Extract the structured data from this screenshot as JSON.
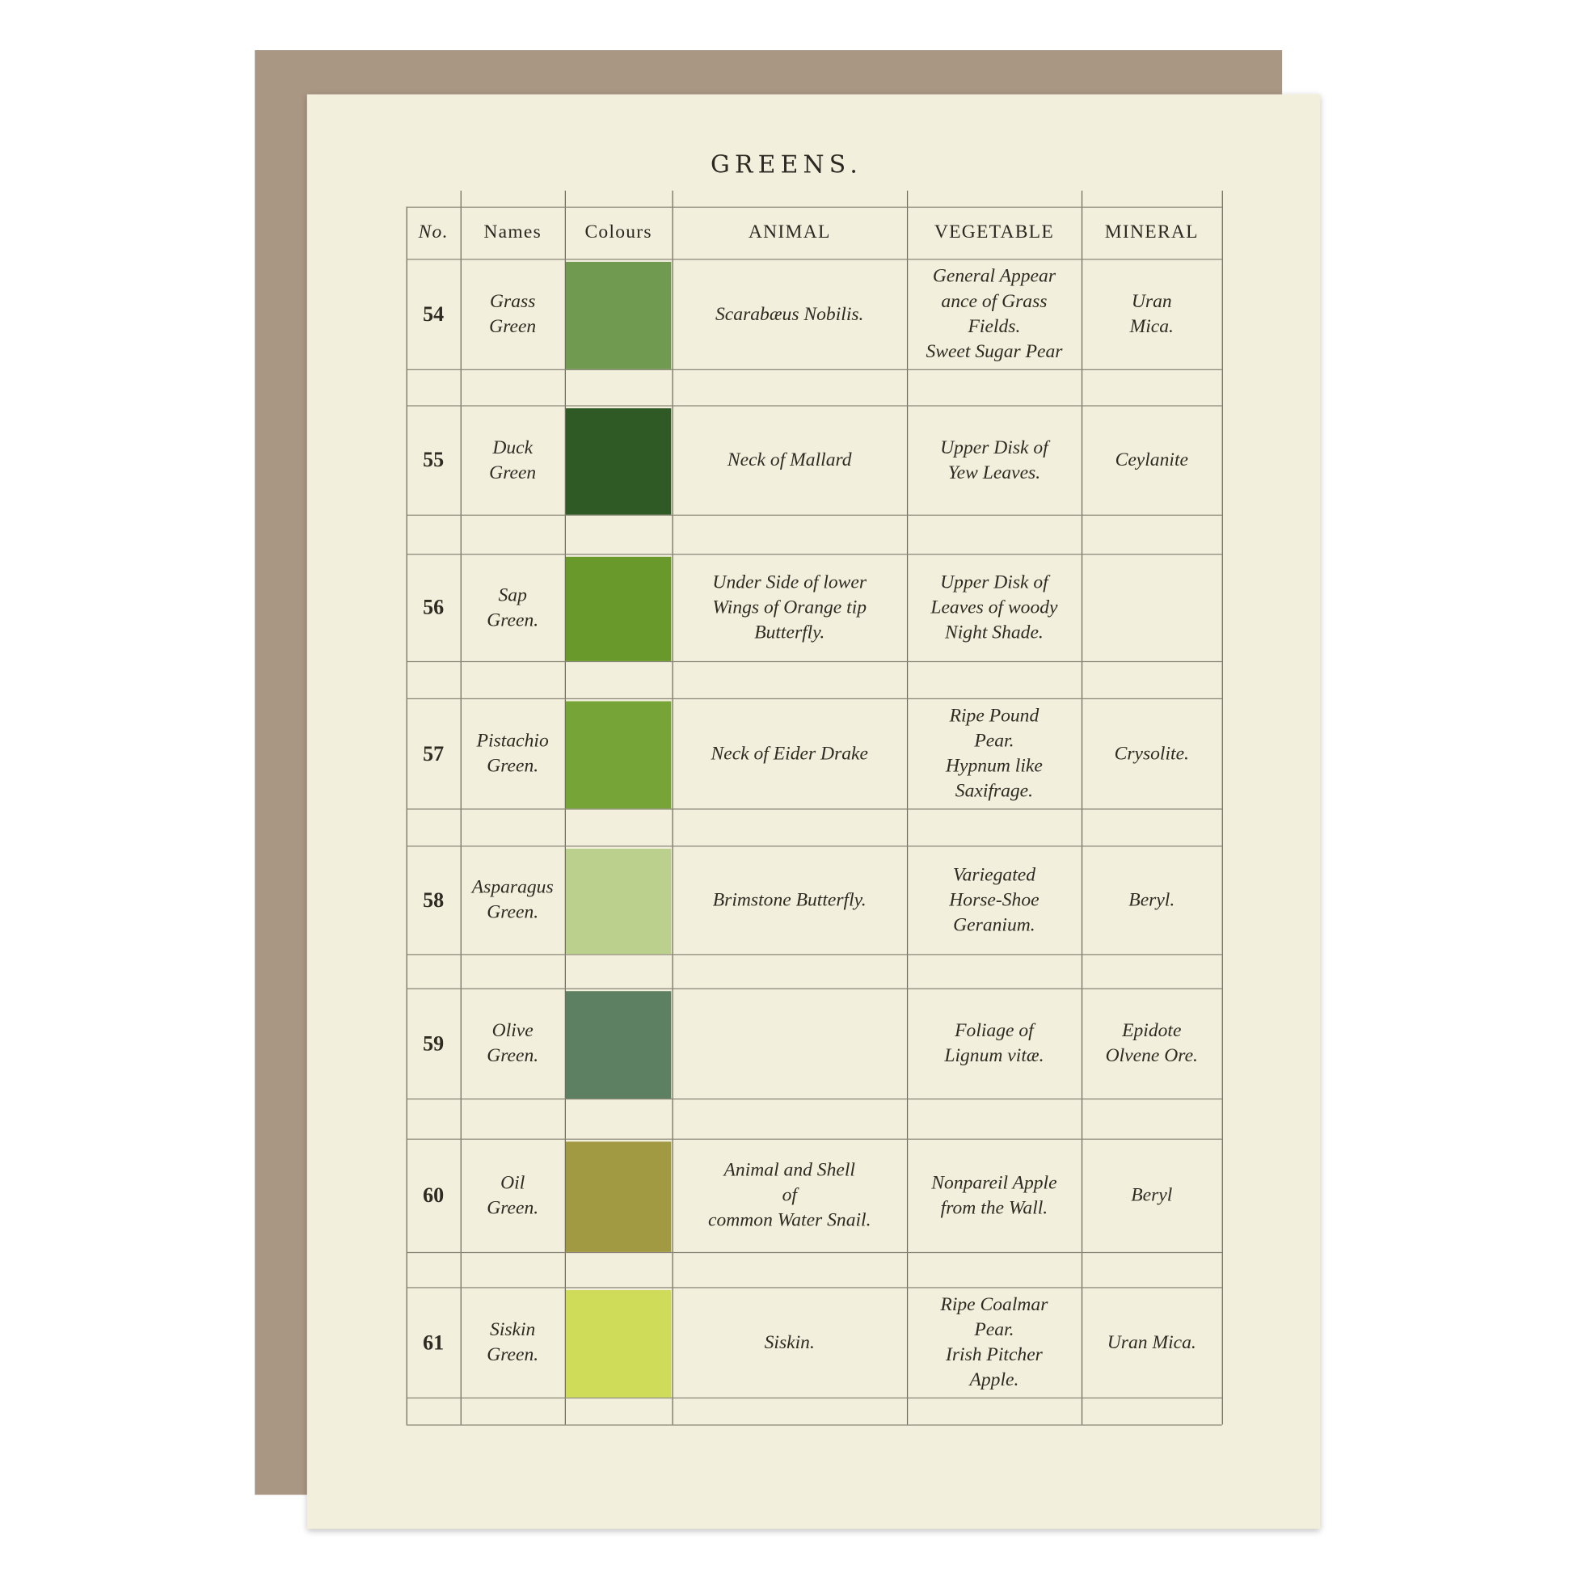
{
  "title": "GREENS.",
  "headers": [
    "No.",
    "Names",
    "Colours",
    "ANIMAL",
    "VEGETABLE",
    "MINERAL"
  ],
  "rows": [
    {
      "no": "54",
      "name": "Grass\nGreen",
      "color": "#6f9a4f",
      "animal": "Scarabæus Nobilis.",
      "vegetable": "General Appear\nance of Grass\nFields.\nSweet Sugar Pear",
      "mineral": "Uran\nMica."
    },
    {
      "no": "55",
      "name": "Duck\nGreen",
      "color": "#2f5a26",
      "animal": "Neck of Mallard",
      "vegetable": "Upper Disk of\nYew Leaves.",
      "mineral": "Ceylanite"
    },
    {
      "no": "56",
      "name": "Sap\nGreen.",
      "color": "#6a992b",
      "animal": "Under Side of lower\nWings of Orange tip\nButterfly.",
      "vegetable": "Upper Disk of\nLeaves of woody\nNight Shade.",
      "mineral": ""
    },
    {
      "no": "57",
      "name": "Pistachio\nGreen.",
      "color": "#76a437",
      "animal": "Neck of Eider Drake",
      "vegetable": "Ripe Pound\nPear.\nHypnum like\nSaxifrage.",
      "mineral": "Crysolite."
    },
    {
      "no": "58",
      "name": "Asparagus\nGreen.",
      "color": "#bcd08d",
      "animal": "Brimstone Butterfly.",
      "vegetable": "Variegated\nHorse-Shoe\nGeranium.",
      "mineral": "Beryl."
    },
    {
      "no": "59",
      "name": "Olive\nGreen.",
      "color": "#5e8062",
      "animal": "",
      "vegetable": "Foliage of\nLignum vitæ.",
      "mineral": "Epidote\nOlvene Ore."
    },
    {
      "no": "60",
      "name": "Oil\nGreen.",
      "color": "#a19a42",
      "animal": "Animal and Shell\nof\ncommon Water Snail.",
      "vegetable": "Nonpareil Apple\nfrom the Wall.",
      "mineral": "Beryl"
    },
    {
      "no": "61",
      "name": "Siskin\nGreen.",
      "color": "#cfdc5a",
      "animal": "Siskin.",
      "vegetable": "Ripe Coalmar\nPear.\nIrish Pitcher\nApple.",
      "mineral": "Uran Mica."
    }
  ]
}
